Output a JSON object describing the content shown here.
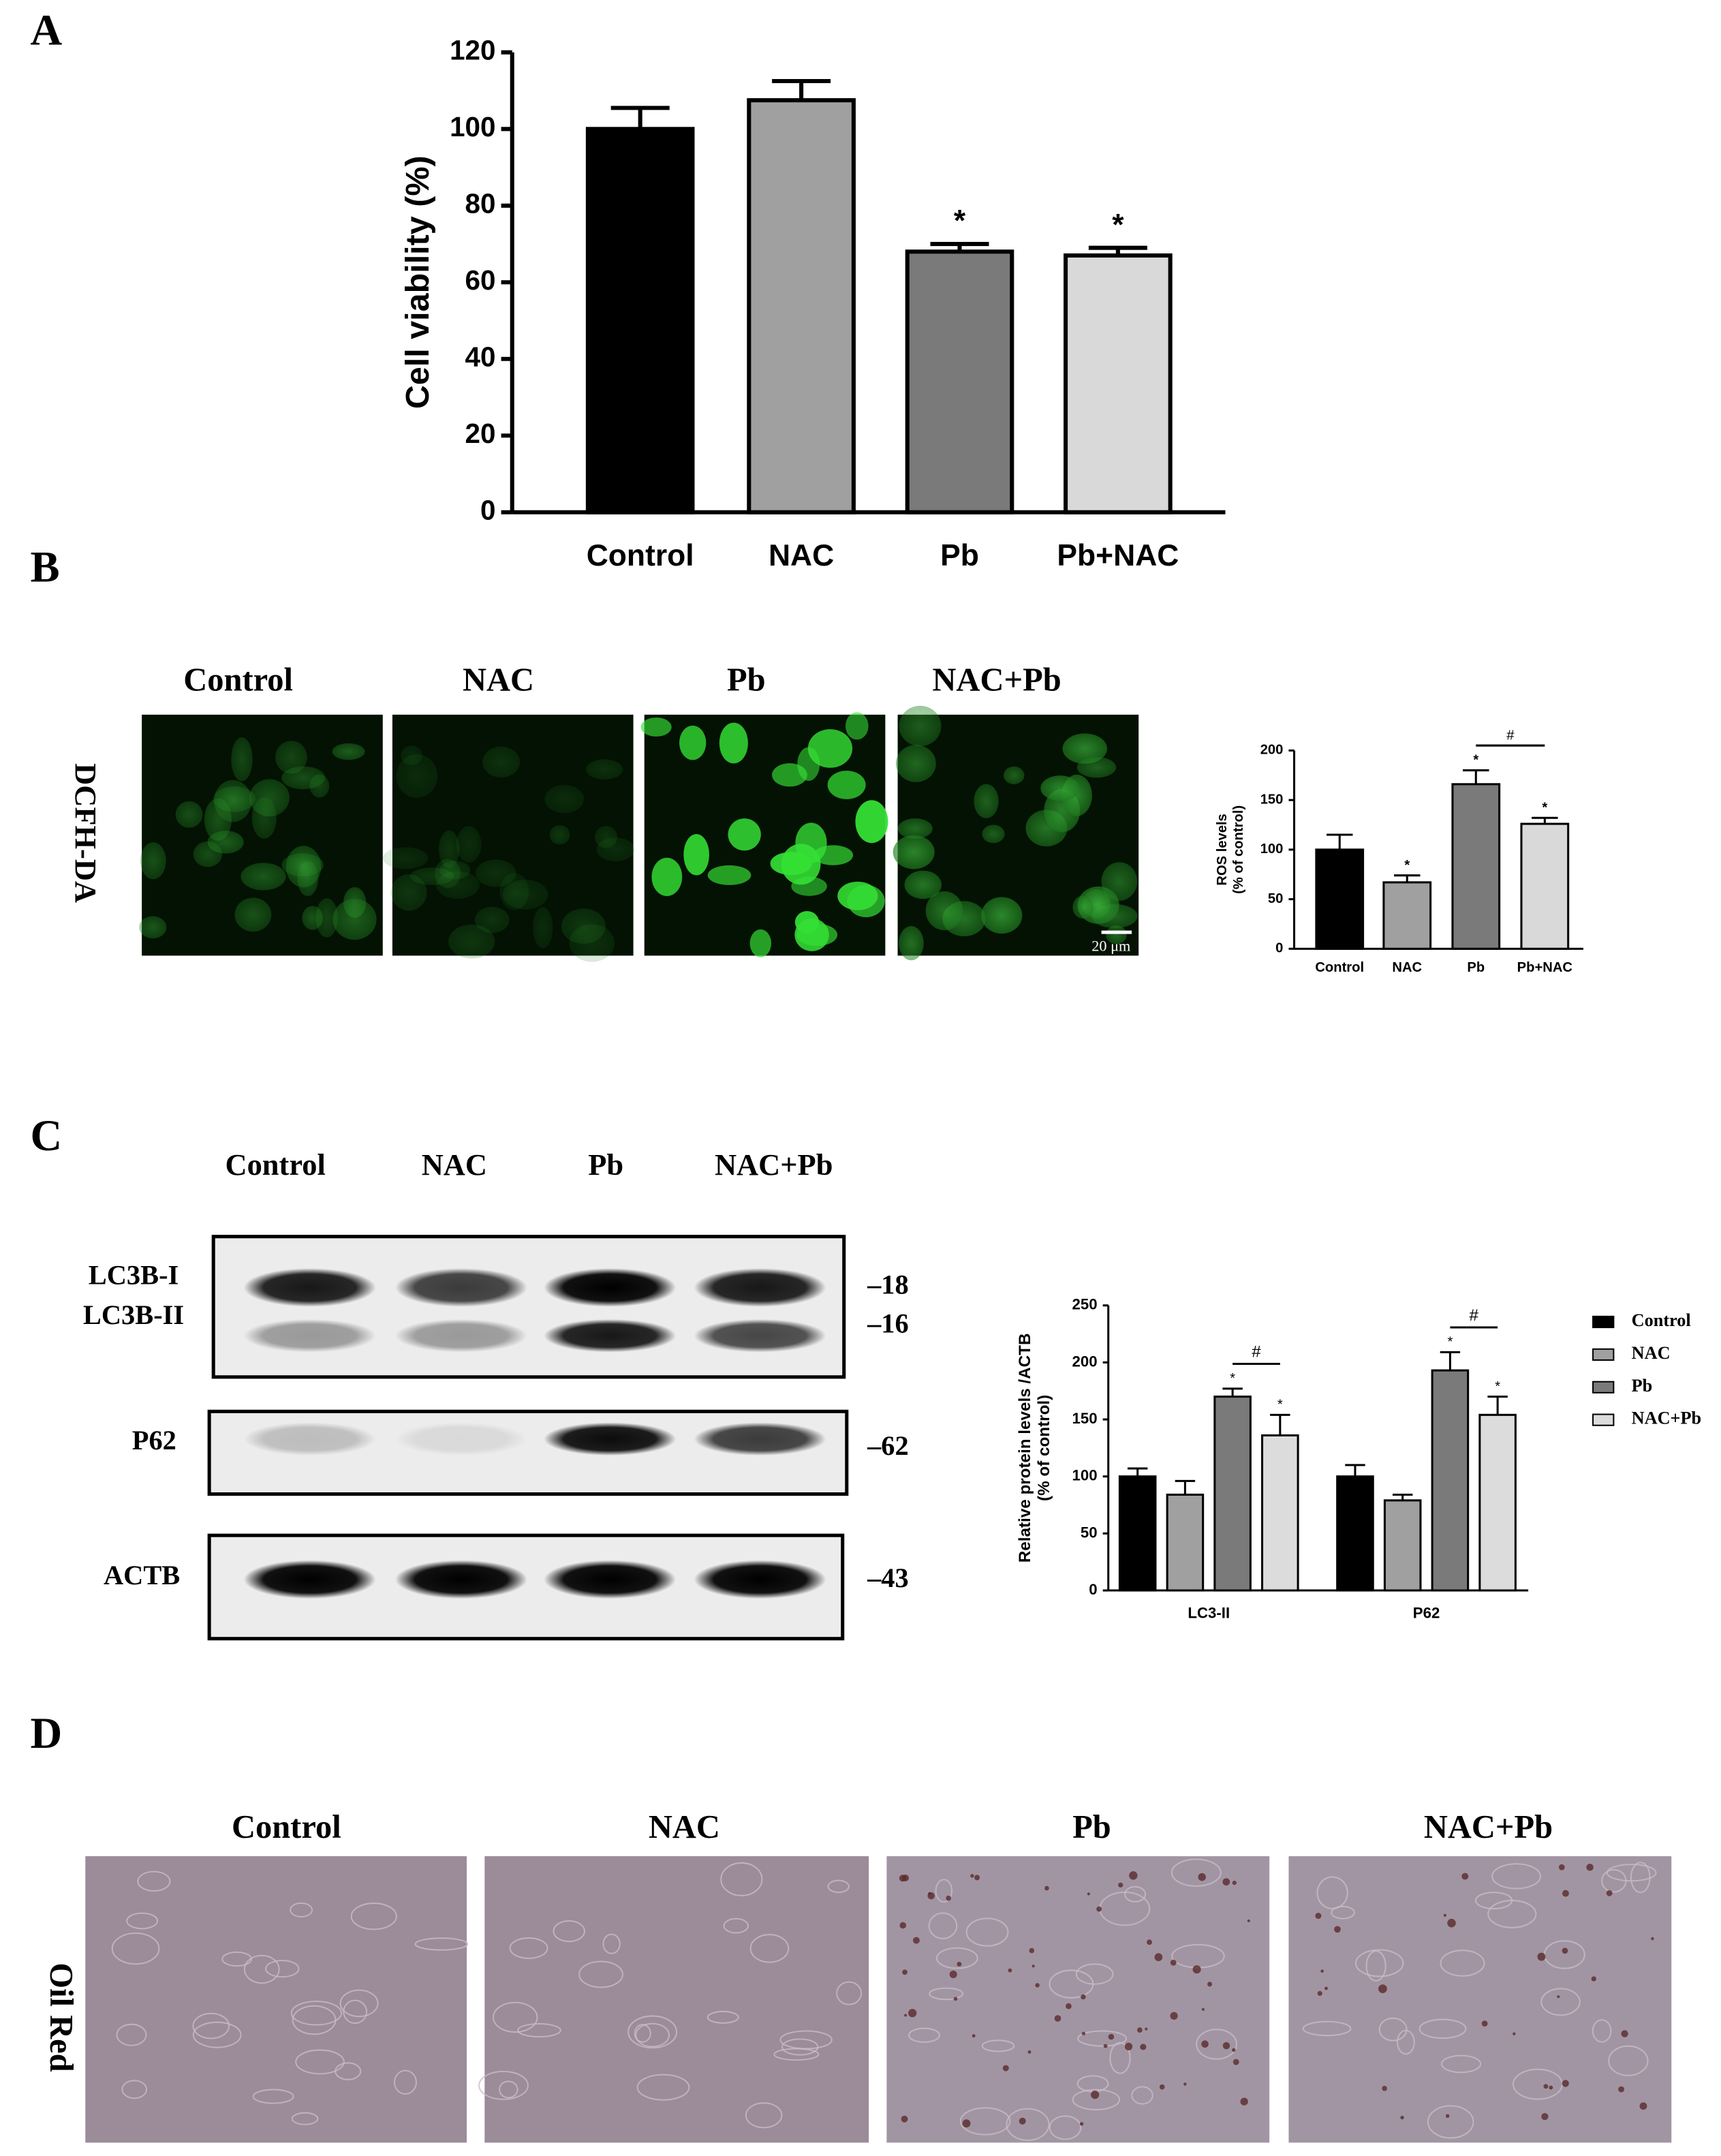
{
  "panel_labels": [
    "A",
    "B",
    "C",
    "D"
  ],
  "chart_data": [
    {
      "type": "bar",
      "ylabel": "Cell viability (%)",
      "categories": [
        "Control",
        "NAC",
        "Pb",
        "Pb+NAC"
      ],
      "values": [
        100,
        107.5,
        68,
        67
      ],
      "errors": [
        5.5,
        5,
        2,
        2
      ],
      "colors": [
        "#000000",
        "#a0a0a0",
        "#7a7a7a",
        "#d9d9d9"
      ],
      "significance": [
        null,
        null,
        "*",
        "*"
      ],
      "ylim": [
        0,
        120
      ],
      "yticks": [
        0,
        20,
        40,
        60,
        80,
        100,
        120
      ]
    },
    {
      "type": "bar",
      "ylabel_lines": [
        "ROS levels",
        "(% of control)"
      ],
      "categories": [
        "Control",
        "NAC",
        "Pb",
        "Pb+NAC"
      ],
      "values": [
        100,
        67,
        166,
        126
      ],
      "errors": [
        15,
        7,
        14,
        6
      ],
      "colors": [
        "#000000",
        "#a0a0a0",
        "#7a7a7a",
        "#d9d9d9"
      ],
      "significance": [
        null,
        "*",
        "*",
        "*"
      ],
      "brackets": [
        {
          "label": "#",
          "between": [
            "Pb",
            "Pb+NAC"
          ]
        }
      ],
      "ylim": [
        0,
        200
      ],
      "yticks": [
        0,
        50,
        100,
        150,
        200
      ]
    },
    {
      "type": "grouped_bar",
      "ylabel_lines": [
        "Relative protein levels /ACTB",
        "(% of control)"
      ],
      "categories": [
        "LC3-II",
        "P62"
      ],
      "series": [
        {
          "name": "Control",
          "color": "#000000",
          "values": [
            100,
            100
          ],
          "errors": [
            7,
            10
          ],
          "significance": [
            null,
            null
          ]
        },
        {
          "name": "NAC",
          "color": "#a0a0a0",
          "values": [
            84,
            79
          ],
          "errors": [
            12,
            5
          ],
          "significance": [
            null,
            null
          ]
        },
        {
          "name": "Pb",
          "color": "#7a7a7a",
          "values": [
            170,
            193
          ],
          "errors": [
            7,
            16
          ],
          "significance": [
            "*",
            "*"
          ]
        },
        {
          "name": "NAC+Pb",
          "color": "#dcdcdc",
          "values": [
            136,
            154
          ],
          "errors": [
            18,
            16
          ],
          "significance": [
            "*",
            "*"
          ]
        }
      ],
      "brackets": [
        {
          "label": "#",
          "category": "LC3-II",
          "between": [
            "Pb",
            "NAC+Pb"
          ]
        },
        {
          "label": "#",
          "category": "P62",
          "between": [
            "Pb",
            "NAC+Pb"
          ]
        }
      ],
      "ylim": [
        0,
        250
      ],
      "yticks": [
        0,
        50,
        100,
        150,
        200,
        250
      ],
      "legend": "right"
    }
  ],
  "dcfh": {
    "row_label": "DCFH-DA",
    "columns": [
      "Control",
      "NAC",
      "Pb",
      "NAC+Pb"
    ],
    "scale_bar": "20 μm"
  },
  "western": {
    "lanes": [
      "Control",
      "NAC",
      "Pb",
      "NAC+Pb"
    ],
    "proteins": [
      "LC3B-I",
      "LC3B-II",
      "P62",
      "ACTB"
    ],
    "markers": [
      "–18",
      "–16",
      "–62",
      "–43"
    ]
  },
  "oil_red": {
    "row_label": "Oil Red",
    "columns": [
      "Control",
      "NAC",
      "Pb",
      "NAC+Pb"
    ]
  }
}
